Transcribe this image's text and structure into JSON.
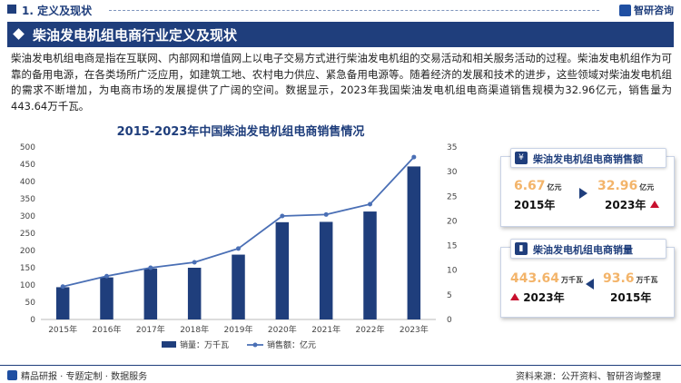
{
  "header": {
    "section": "1. 定义及现状",
    "brand": "智研咨询"
  },
  "banner": {
    "title": "柴油发电机组电商行业定义及现状"
  },
  "intro": "柴油发电机组电商是指在互联网、内部网和增值网上以电子交易方式进行柴油发电机组的交易活动和相关服务活动的过程。柴油发电机组作为可靠的备用电源，在各类场所广泛应用，如建筑工地、农村电力供应、紧急备用电源等。随着经济的发展和技术的进步，这些领域对柴油发电机组的需求不断增加，为电商市场的发展提供了广阔的空间。数据显示，2023年我国柴油发电机组电商渠道销售规模为32.96亿元，销售量为443.64万千瓦。",
  "chart_data": {
    "type": "bar+line",
    "title": "2015-2023年中国柴油发电机组电商销售情况",
    "categories": [
      "2015年",
      "2016年",
      "2017年",
      "2018年",
      "2019年",
      "2020年",
      "2021年",
      "2022年",
      "2023年"
    ],
    "series": [
      {
        "name": "销量：万千瓦",
        "type": "bar",
        "axis": "left",
        "values": [
          93.6,
          122,
          148,
          150,
          188,
          282,
          283,
          313,
          443.64
        ]
      },
      {
        "name": "销售额：亿元",
        "type": "line",
        "axis": "right",
        "values": [
          6.67,
          8.8,
          10.5,
          11.6,
          14.4,
          21.0,
          21.3,
          23.4,
          32.96
        ]
      }
    ],
    "y_left": {
      "min": 0,
      "max": 500,
      "ticks": [
        0,
        50,
        100,
        150,
        200,
        250,
        300,
        350,
        400,
        450,
        500
      ]
    },
    "y_right": {
      "min": 0,
      "max": 35,
      "ticks": [
        0,
        5,
        10,
        15,
        20,
        25,
        30,
        35
      ]
    },
    "legend_position": "bottom",
    "grid": false,
    "colors": {
      "bar": "#1f3e7c",
      "line": "#4a6fb5"
    }
  },
  "card_sales": {
    "title": "柴油发电机组电商销售额",
    "from_value": "6.67",
    "from_unit": "亿元",
    "from_year": "2015年",
    "to_value": "32.96",
    "to_unit": "亿元",
    "to_year": "2023年"
  },
  "card_volume": {
    "title": "柴油发电机组电商销量",
    "from_value": "443.64",
    "from_unit": "万千瓦",
    "from_year": "2023年",
    "to_value": "93.6",
    "to_unit": "万千瓦",
    "to_year": "2015年"
  },
  "footer": {
    "left": "精品研报 · 专题定制 · 数据服务",
    "source": "资料来源：公开资料、智研咨询整理"
  },
  "colors": {
    "primary": "#1f3e7c",
    "highlight": "#f3b46a",
    "up_arrow": "#c8102e"
  }
}
